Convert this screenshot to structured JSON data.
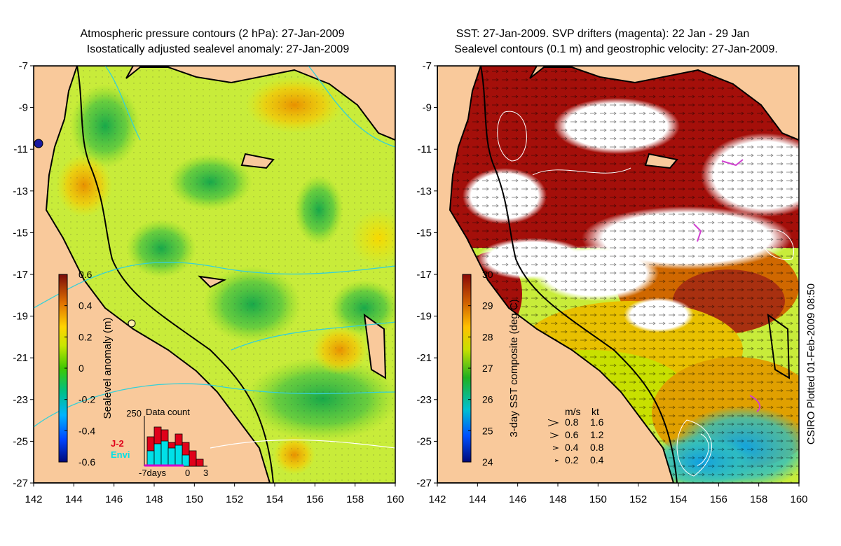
{
  "left_panel": {
    "title_line1": "Atmospheric pressure contours (2 hPa): 27-Jan-2009",
    "title_line2": "Isostatically adjusted sealevel anomaly: 27-Jan-2009",
    "colorbar": {
      "label": "Sealevel anomaly (m)",
      "ticks": [
        "0.6",
        "0.4",
        "0.2",
        "0",
        "-0.2",
        "-0.4",
        "-0.6"
      ],
      "range": [
        -0.6,
        0.6
      ]
    },
    "inset": {
      "title": "Data count",
      "y_max_label": "250",
      "legend_j2": "J-2",
      "legend_envi": "Envi",
      "x_label_left": "-7days",
      "x_label_mid": "0",
      "x_label_right": "3",
      "j2_color": "#e0001a",
      "envi_color": "#00e0e8"
    }
  },
  "right_panel": {
    "title_line1": "SST: 27-Jan-2009. SVP drifters (magenta): 22 Jan - 29 Jan",
    "title_line2": "Sealevel contours (0.1 m) and geostrophic velocity: 27-Jan-2009.",
    "colorbar": {
      "label": "3-day SST composite (deg C)",
      "ticks": [
        "30",
        "29",
        "28",
        "27",
        "26",
        "25",
        "24"
      ],
      "range": [
        24,
        30
      ]
    },
    "velocity_legend": {
      "header_ms": "m/s",
      "header_kt": "kt",
      "rows": [
        {
          "ms": "0.8",
          "kt": "1.6"
        },
        {
          "ms": "0.6",
          "kt": "1.2"
        },
        {
          "ms": "0.4",
          "kt": "0.8"
        },
        {
          "ms": "0.2",
          "kt": "0.4"
        }
      ]
    }
  },
  "axes": {
    "lat_ticks": [
      "-7",
      "-9",
      "-11",
      "-13",
      "-15",
      "-17",
      "-19",
      "-21",
      "-23",
      "-25",
      "-27"
    ],
    "lon_ticks": [
      "142",
      "144",
      "146",
      "148",
      "150",
      "152",
      "154",
      "156",
      "158",
      "160"
    ],
    "lat_range": [
      -27,
      -7
    ],
    "lon_range": [
      142,
      160
    ]
  },
  "credit": "CSIRO Plotted 01-Feb-2009 08:50",
  "colors": {
    "land": "#f9c99b",
    "sea_base": "#c8ec3a",
    "sst_warm": "#a40f0a",
    "coast": "#000000"
  }
}
